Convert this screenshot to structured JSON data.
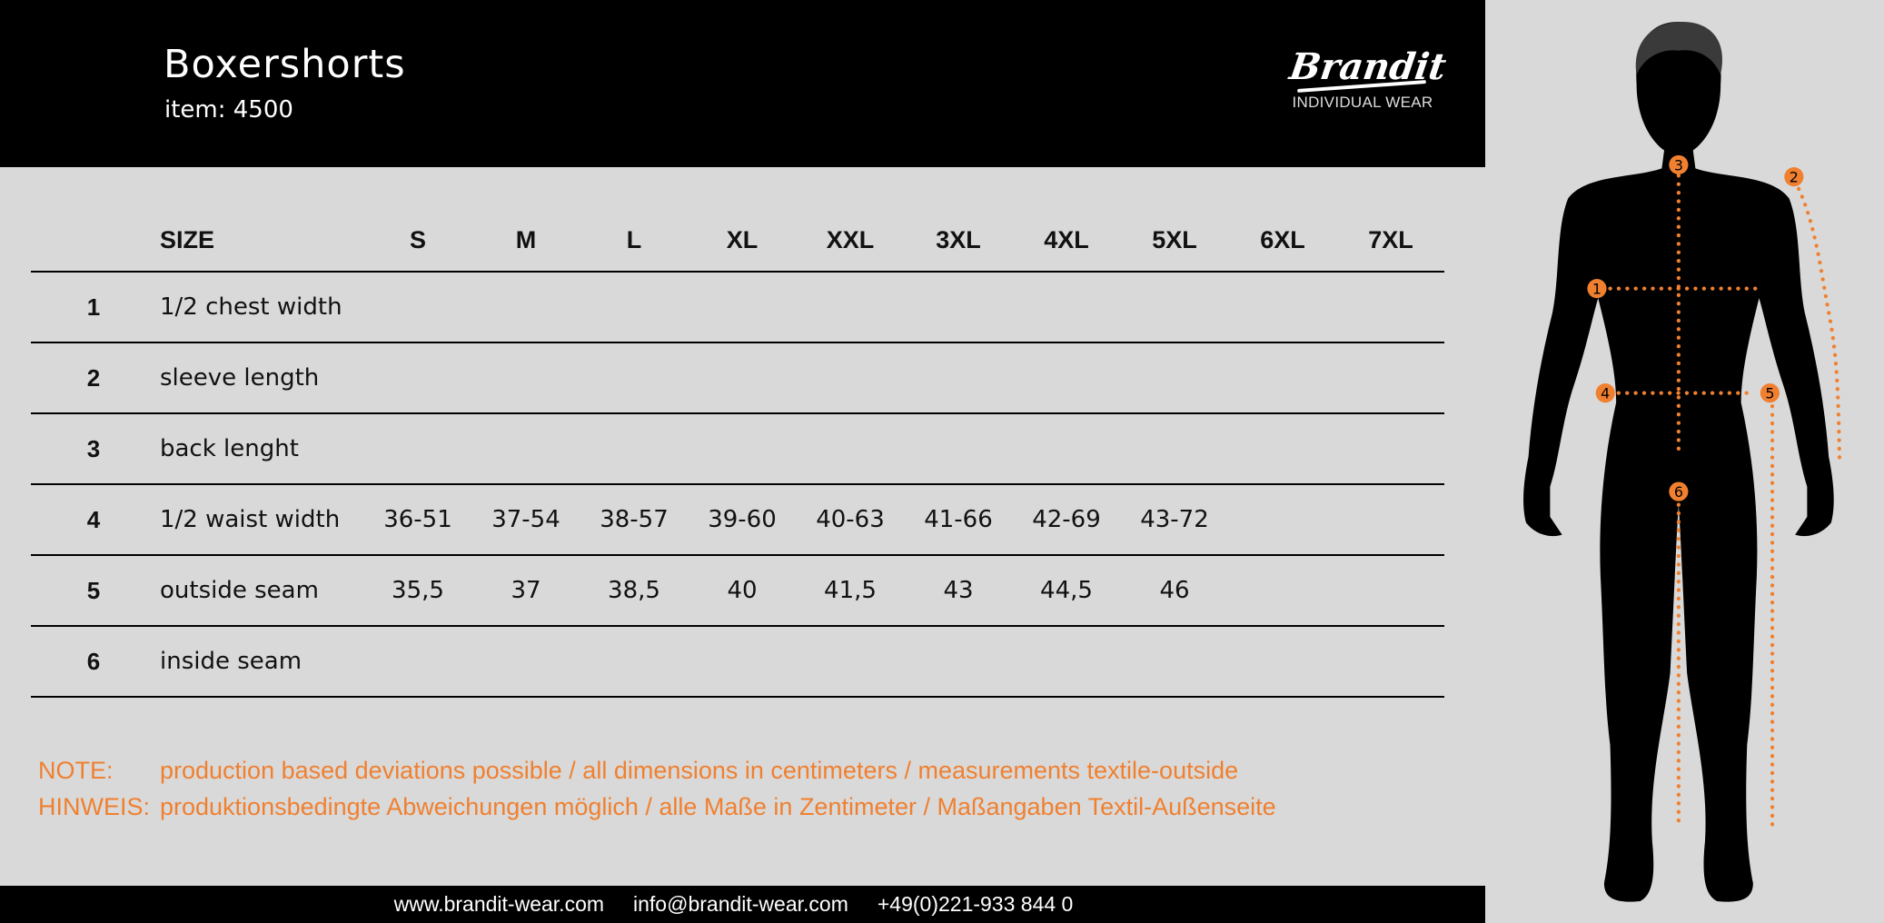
{
  "header": {
    "title": "Boxershorts",
    "item": "item: 4500",
    "logo_text": "Brandit",
    "logo_subtitle": "INDIVIDUAL WEAR"
  },
  "table": {
    "size_header": "SIZE",
    "sizes": [
      "S",
      "M",
      "L",
      "XL",
      "XXL",
      "3XL",
      "4XL",
      "5XL",
      "6XL",
      "7XL"
    ],
    "rows": [
      {
        "num": "1",
        "label": "1/2 chest width",
        "values": [
          "",
          "",
          "",
          "",
          "",
          "",
          "",
          "",
          "",
          ""
        ]
      },
      {
        "num": "2",
        "label": "sleeve length",
        "values": [
          "",
          "",
          "",
          "",
          "",
          "",
          "",
          "",
          "",
          ""
        ]
      },
      {
        "num": "3",
        "label": "back lenght",
        "values": [
          "",
          "",
          "",
          "",
          "",
          "",
          "",
          "",
          "",
          ""
        ]
      },
      {
        "num": "4",
        "label": "1/2 waist width",
        "values": [
          "36-51",
          "37-54",
          "38-57",
          "39-60",
          "40-63",
          "41-66",
          "42-69",
          "43-72",
          "",
          ""
        ]
      },
      {
        "num": "5",
        "label": "outside seam",
        "values": [
          "35,5",
          "37",
          "38,5",
          "40",
          "41,5",
          "43",
          "44,5",
          "46",
          "",
          ""
        ]
      },
      {
        "num": "6",
        "label": "inside seam",
        "values": [
          "",
          "",
          "",
          "",
          "",
          "",
          "",
          "",
          "",
          ""
        ]
      }
    ]
  },
  "notes": [
    {
      "key": "NOTE:",
      "text": "production based deviations possible / all dimensions in centimeters / measurements textile-outside"
    },
    {
      "key": "HINWEIS:",
      "text": "produktionsbedingte Abweichungen möglich / alle Maße in Zentimeter / Maßangaben Textil-Außenseite"
    }
  ],
  "footer": {
    "website": "www.brandit-wear.com",
    "email": "info@brandit-wear.com",
    "phone": "+49(0)221-933 844 0"
  },
  "figure": {
    "markers": [
      "1",
      "2",
      "3",
      "4",
      "5",
      "6"
    ]
  },
  "colors": {
    "accent": "#f08030",
    "background": "#d9d9d9",
    "bar": "#000000"
  }
}
